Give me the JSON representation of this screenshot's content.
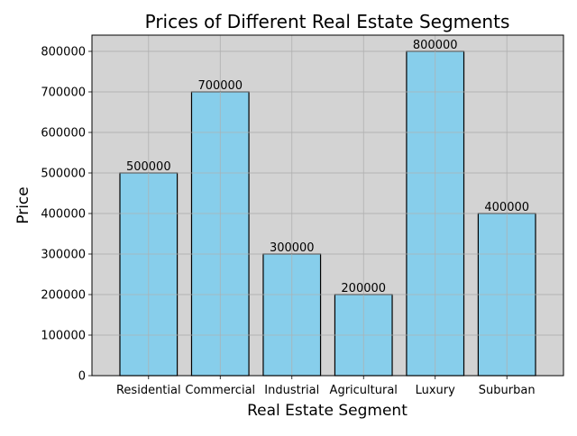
{
  "chart_data": {
    "type": "bar",
    "title": "Prices of Different Real Estate Segments",
    "xlabel": "Real Estate Segment",
    "ylabel": "Price",
    "categories": [
      "Residential",
      "Commercial",
      "Industrial",
      "Agricultural",
      "Luxury",
      "Suburban"
    ],
    "values": [
      500000,
      700000,
      300000,
      200000,
      800000,
      400000
    ],
    "data_labels": [
      "500000",
      "700000",
      "300000",
      "200000",
      "800000",
      "400000"
    ],
    "ylim": [
      0,
      840000
    ],
    "yticks": [
      0,
      100000,
      200000,
      300000,
      400000,
      500000,
      600000,
      700000,
      800000
    ],
    "ytick_labels": [
      "0",
      "100000",
      "200000",
      "300000",
      "400000",
      "500000",
      "600000",
      "700000",
      "800000"
    ],
    "grid": true,
    "legend": false,
    "colors": {
      "bar_fill": "#87ceeb",
      "bar_edge": "#000000",
      "plot_background": "#d3d3d3",
      "grid": "#b0b0b0",
      "text": "#000000"
    }
  }
}
